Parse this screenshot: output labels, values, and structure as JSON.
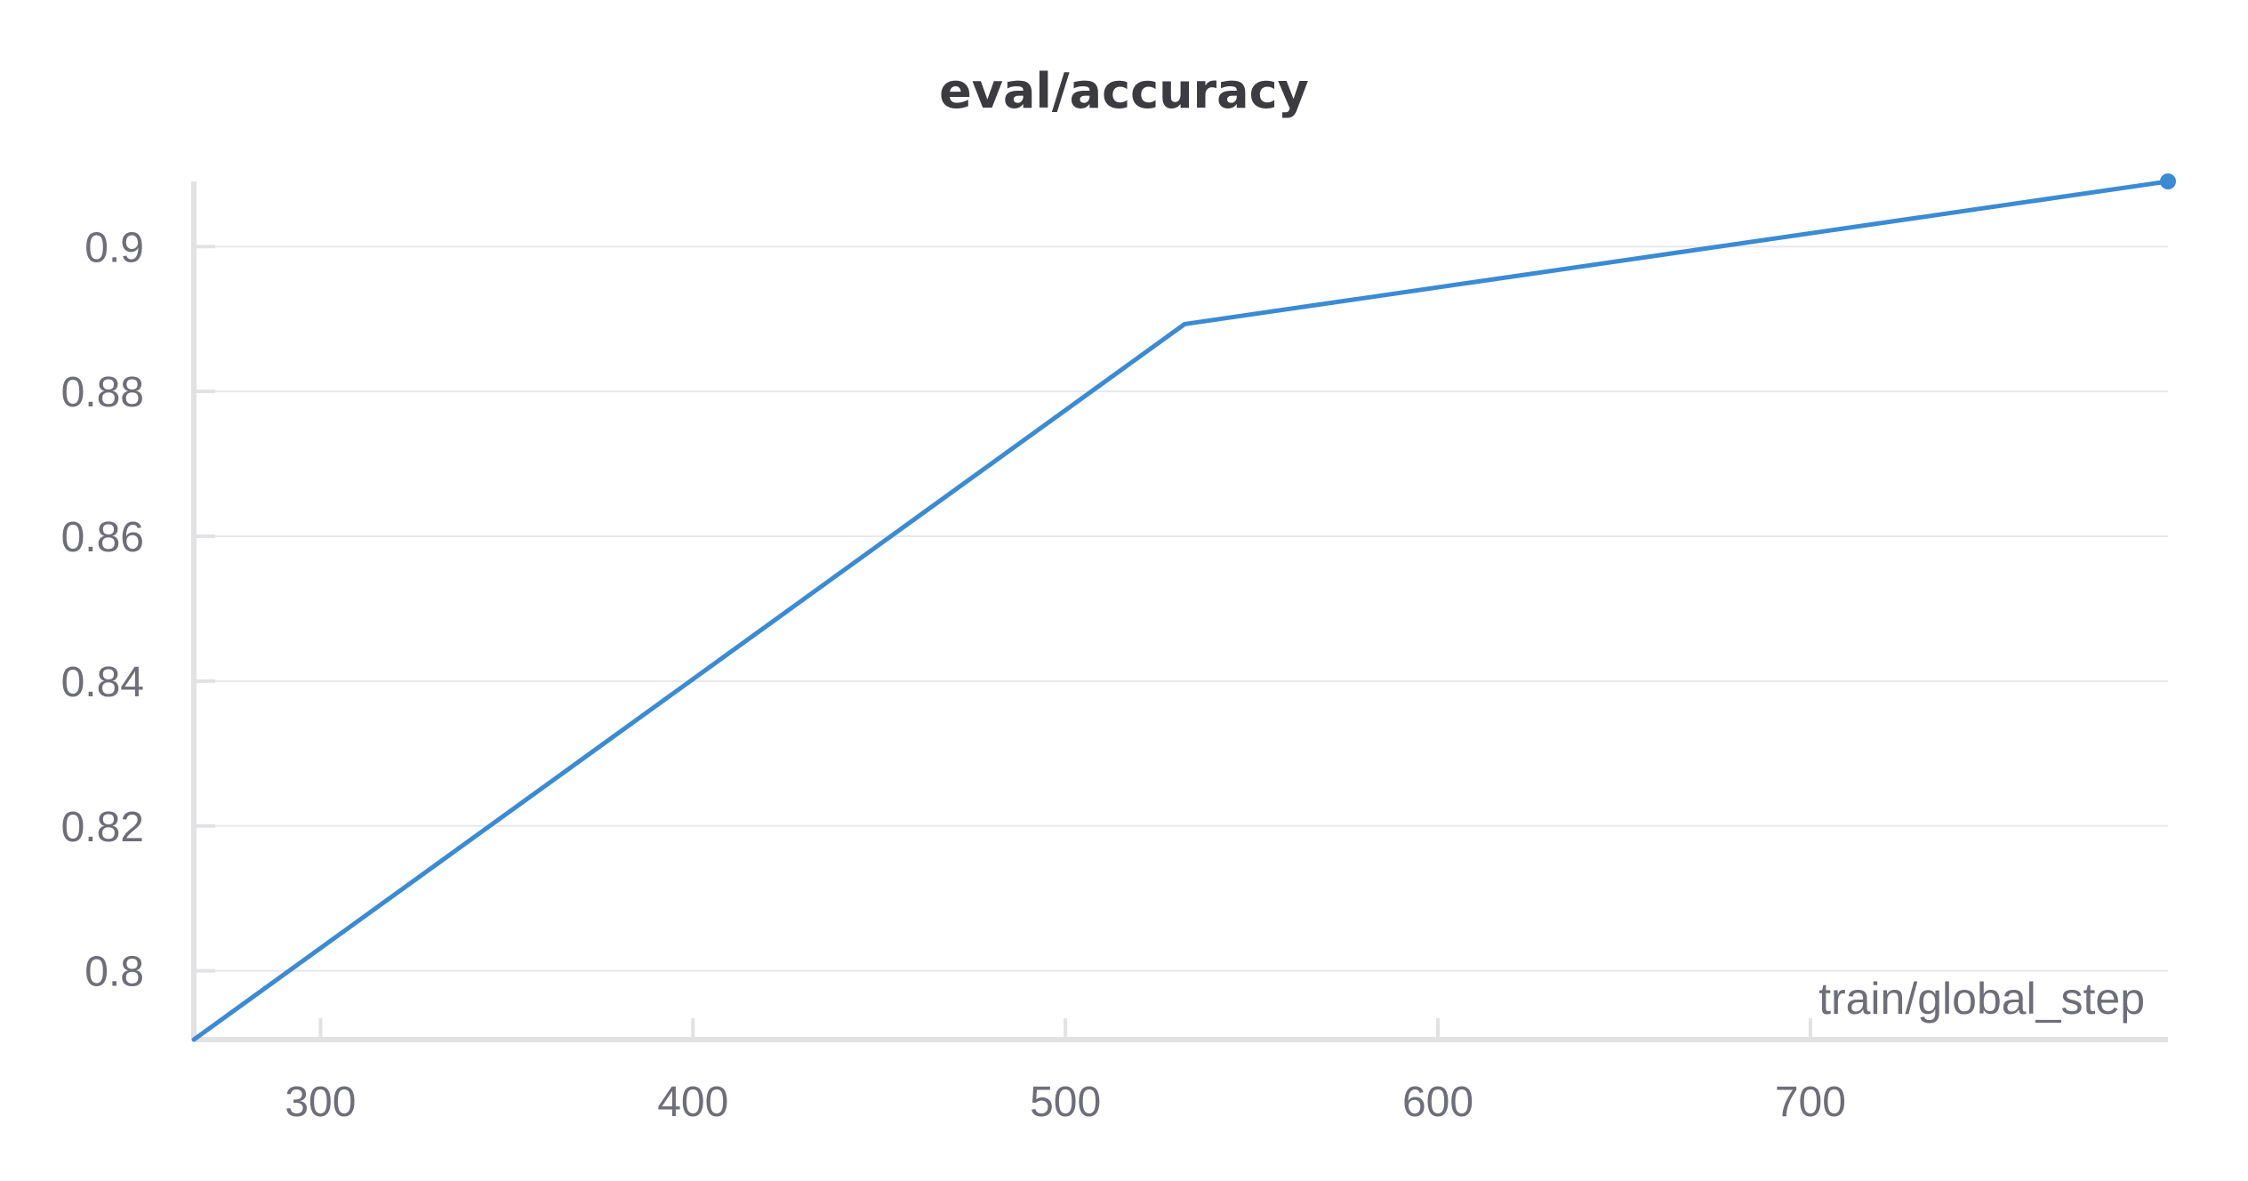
{
  "chart_data": {
    "type": "line",
    "title": "eval/accuracy",
    "xlabel": "train/global_step",
    "ylabel": "",
    "xlim": [
      266,
      796
    ],
    "ylim": [
      0.7905,
      0.909
    ],
    "x_ticks": [
      300,
      400,
      500,
      600,
      700
    ],
    "y_ticks": [
      0.8,
      0.82,
      0.84,
      0.86,
      0.88,
      0.9
    ],
    "y_tick_labels": [
      "0.8",
      "0.82",
      "0.84",
      "0.86",
      "0.88",
      "0.9"
    ],
    "grid": true,
    "series": [
      {
        "name": "",
        "color": "#3a8bd4",
        "points": [
          {
            "x": 266,
            "y": 0.7905
          },
          {
            "x": 532,
            "y": 0.8893
          },
          {
            "x": 796,
            "y": 0.909
          }
        ]
      }
    ]
  }
}
